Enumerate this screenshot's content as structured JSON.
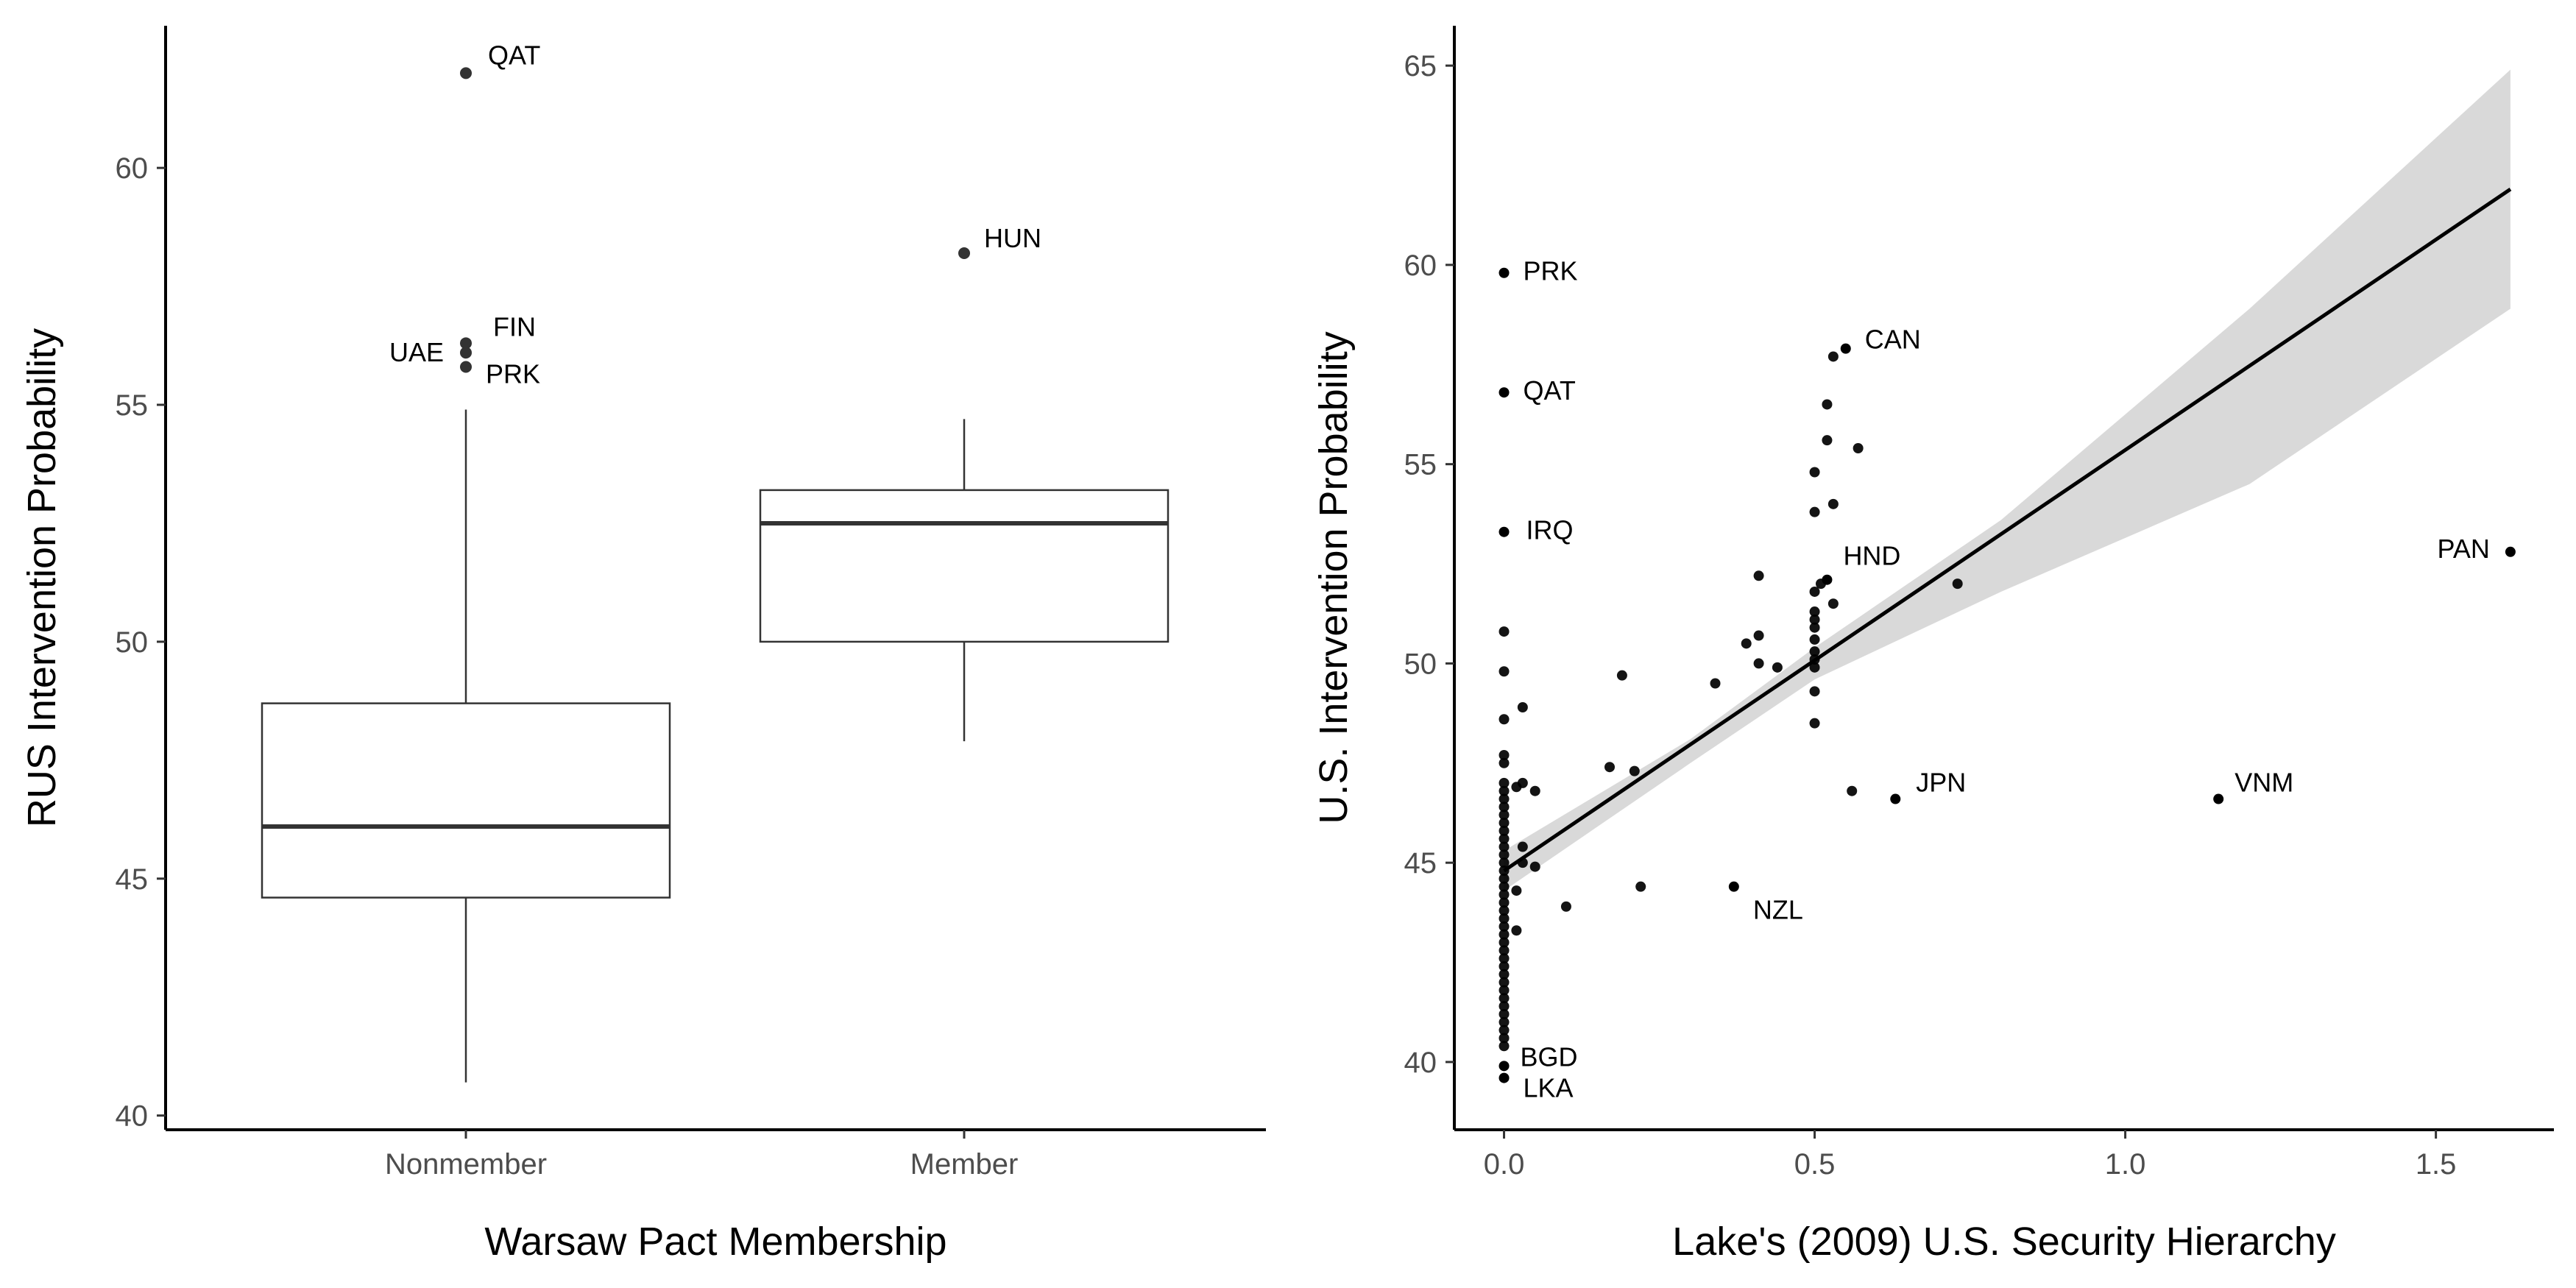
{
  "chart_data": [
    {
      "type": "box",
      "xlabel": "Warsaw Pact Membership",
      "ylabel": "RUS Intervention Probability",
      "ylim": [
        39.7,
        63.0
      ],
      "yticks": [
        40,
        45,
        50,
        55,
        60
      ],
      "grid": false,
      "categories": [
        "Nonmember",
        "Member"
      ],
      "boxes": [
        {
          "category": "Nonmember",
          "whisker_low": 40.7,
          "q1": 44.6,
          "median": 46.1,
          "q3": 48.7,
          "whisker_high": 54.9,
          "outliers": [
            {
              "value": 62.0,
              "label": "QAT"
            },
            {
              "value": 56.3,
              "label": "FIN"
            },
            {
              "value": 56.1,
              "label": "UAE"
            },
            {
              "value": 55.8,
              "label": "PRK"
            }
          ]
        },
        {
          "category": "Member",
          "whisker_low": 47.9,
          "q1": 50.0,
          "median": 52.5,
          "q3": 53.2,
          "whisker_high": 54.7,
          "outliers": [
            {
              "value": 58.2,
              "label": "HUN"
            }
          ]
        }
      ]
    },
    {
      "type": "scatter",
      "xlabel": "Lake's (2009) U.S. Security Hierarchy",
      "ylabel": "U.S. Intervention Probability",
      "xlim": [
        -0.08,
        1.69
      ],
      "ylim": [
        38.3,
        66.0
      ],
      "xticks": [
        "0.0",
        "0.5",
        "1.0",
        "1.5"
      ],
      "yticks": [
        40,
        45,
        50,
        55,
        60,
        65
      ],
      "grid": false,
      "trend": {
        "x0": 0.0,
        "y0": 44.8,
        "x1": 1.62,
        "y1": 61.9,
        "ci": [
          [
            0.0,
            44.3,
            45.3
          ],
          [
            0.3,
            47.5,
            48.1
          ],
          [
            0.5,
            49.6,
            50.4
          ],
          [
            0.8,
            51.8,
            53.6
          ],
          [
            1.2,
            54.5,
            58.9
          ],
          [
            1.62,
            58.9,
            64.9
          ]
        ]
      },
      "labeled_points": [
        {
          "x": 0.0,
          "y": 59.8,
          "label": "PRK"
        },
        {
          "x": 0.0,
          "y": 56.8,
          "label": "QAT"
        },
        {
          "x": 0.0,
          "y": 53.3,
          "label": "IRQ"
        },
        {
          "x": 0.0,
          "y": 39.9,
          "label": "BGD"
        },
        {
          "x": 0.0,
          "y": 39.6,
          "label": "LKA"
        },
        {
          "x": 0.55,
          "y": 57.9,
          "label": "CAN"
        },
        {
          "x": 0.52,
          "y": 52.1,
          "label": "HND"
        },
        {
          "x": 0.63,
          "y": 46.6,
          "label": "JPN"
        },
        {
          "x": 0.37,
          "y": 44.4,
          "label": "NZL"
        },
        {
          "x": 1.15,
          "y": 46.6,
          "label": "VNM"
        },
        {
          "x": 1.62,
          "y": 52.8,
          "label": "PAN"
        }
      ],
      "points": [
        [
          0.0,
          50.8
        ],
        [
          0.0,
          49.8
        ],
        [
          0.0,
          48.6
        ],
        [
          0.0,
          47.7
        ],
        [
          0.0,
          47.5
        ],
        [
          0.0,
          47.0
        ],
        [
          0.0,
          46.8
        ],
        [
          0.0,
          46.6
        ],
        [
          0.0,
          46.4
        ],
        [
          0.0,
          46.2
        ],
        [
          0.0,
          46.0
        ],
        [
          0.0,
          45.8
        ],
        [
          0.0,
          45.6
        ],
        [
          0.0,
          45.4
        ],
        [
          0.0,
          45.2
        ],
        [
          0.0,
          45.0
        ],
        [
          0.0,
          44.8
        ],
        [
          0.0,
          44.6
        ],
        [
          0.0,
          44.4
        ],
        [
          0.0,
          44.2
        ],
        [
          0.0,
          44.0
        ],
        [
          0.0,
          43.8
        ],
        [
          0.0,
          43.6
        ],
        [
          0.0,
          43.4
        ],
        [
          0.0,
          43.2
        ],
        [
          0.0,
          43.0
        ],
        [
          0.0,
          42.8
        ],
        [
          0.0,
          42.6
        ],
        [
          0.0,
          42.4
        ],
        [
          0.0,
          42.2
        ],
        [
          0.0,
          42.0
        ],
        [
          0.0,
          41.8
        ],
        [
          0.0,
          41.6
        ],
        [
          0.0,
          41.4
        ],
        [
          0.0,
          41.2
        ],
        [
          0.0,
          41.0
        ],
        [
          0.0,
          40.8
        ],
        [
          0.0,
          40.6
        ],
        [
          0.0,
          40.4
        ],
        [
          0.03,
          48.9
        ],
        [
          0.03,
          47.0
        ],
        [
          0.02,
          46.9
        ],
        [
          0.05,
          46.8
        ],
        [
          0.03,
          45.4
        ],
        [
          0.03,
          45.0
        ],
        [
          0.05,
          44.9
        ],
        [
          0.02,
          44.3
        ],
        [
          0.02,
          43.3
        ],
        [
          0.1,
          43.9
        ],
        [
          0.17,
          47.4
        ],
        [
          0.19,
          49.7
        ],
        [
          0.21,
          47.3
        ],
        [
          0.22,
          44.4
        ],
        [
          0.34,
          49.5
        ],
        [
          0.39,
          50.5
        ],
        [
          0.41,
          50.7
        ],
        [
          0.41,
          50.0
        ],
        [
          0.44,
          49.9
        ],
        [
          0.41,
          52.2
        ],
        [
          0.5,
          48.5
        ],
        [
          0.5,
          49.3
        ],
        [
          0.5,
          49.9
        ],
        [
          0.5,
          50.1
        ],
        [
          0.5,
          50.3
        ],
        [
          0.5,
          50.6
        ],
        [
          0.5,
          50.9
        ],
        [
          0.5,
          51.1
        ],
        [
          0.5,
          51.3
        ],
        [
          0.5,
          51.8
        ],
        [
          0.51,
          52.0
        ],
        [
          0.53,
          51.5
        ],
        [
          0.5,
          53.8
        ],
        [
          0.53,
          54.0
        ],
        [
          0.5,
          54.8
        ],
        [
          0.52,
          55.6
        ],
        [
          0.52,
          56.5
        ],
        [
          0.53,
          57.7
        ],
        [
          0.57,
          55.4
        ],
        [
          0.56,
          46.8
        ],
        [
          0.73,
          52.0
        ]
      ]
    }
  ]
}
